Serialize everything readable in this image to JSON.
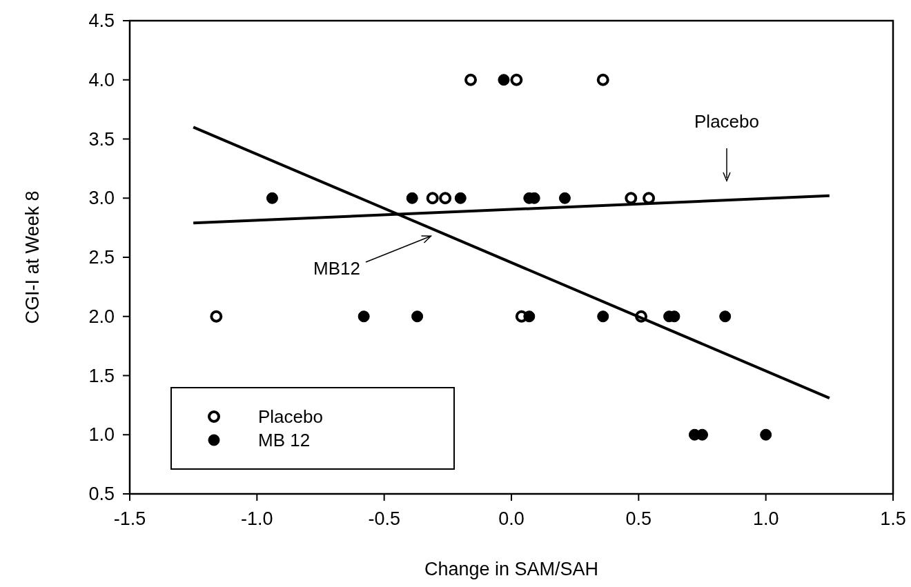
{
  "chart_data": {
    "type": "scatter",
    "xlabel": "Change in SAM/SAH",
    "ylabel": "CGI-I at Week 8",
    "xlim": [
      -1.5,
      1.5
    ],
    "xticks": [
      {
        "value": -1.5,
        "label": "-1.5"
      },
      {
        "value": -1,
        "label": "-1.0"
      },
      {
        "value": -0.5,
        "label": "-0.5"
      },
      {
        "value": 0,
        "label": "0.0"
      },
      {
        "value": 0.5,
        "label": "0.5"
      },
      {
        "value": 1,
        "label": "1.0"
      },
      {
        "value": 1.5,
        "label": "1.5"
      }
    ],
    "ylim": [
      0.5,
      4.5
    ],
    "yticks": [
      0.5,
      {
        "value": 1,
        "label": "1.0"
      },
      1.5,
      {
        "value": 2,
        "label": "2.0"
      },
      2.5,
      {
        "value": 3,
        "label": "3.0"
      },
      3.5,
      {
        "value": 4,
        "label": "4.0"
      },
      4.5
    ],
    "legend": "bottom left",
    "grid": false,
    "series": [
      {
        "name": "Placebo",
        "marker": "circle",
        "color": "#000000",
        "x": [
          -0.16,
          0.02,
          0.36,
          -0.31,
          -0.26,
          0.47,
          0.54,
          -1.16,
          0.04,
          0.51
        ],
        "values": [
          4,
          4,
          4,
          3,
          3,
          3,
          3,
          2,
          2,
          2
        ]
      },
      {
        "name": "MB 12",
        "marker": "circle",
        "color": "#000000",
        "x": [
          -0.03,
          -0.94,
          -0.39,
          -0.2,
          0.07,
          0.09,
          0.21,
          -0.58,
          -0.37,
          0.07,
          0.36,
          0.62,
          0.64,
          0.84,
          0.72,
          0.75,
          1.0
        ],
        "values": [
          4,
          3,
          3,
          3,
          3,
          3,
          3,
          2,
          2,
          2,
          2,
          2,
          2,
          2,
          1,
          1,
          1
        ]
      },
      {
        "type": "line",
        "marker": "none",
        "color": "#000000",
        "x": [
          -1.25,
          1.25
        ],
        "values": [
          2.79,
          3.02
        ]
      },
      {
        "type": "line",
        "marker": "none",
        "color": "#000000",
        "x": [
          -1.25,
          1.25
        ],
        "values": [
          3.6,
          1.31
        ]
      }
    ],
    "annotations": [
      "Placebo",
      "MB12"
    ]
  }
}
